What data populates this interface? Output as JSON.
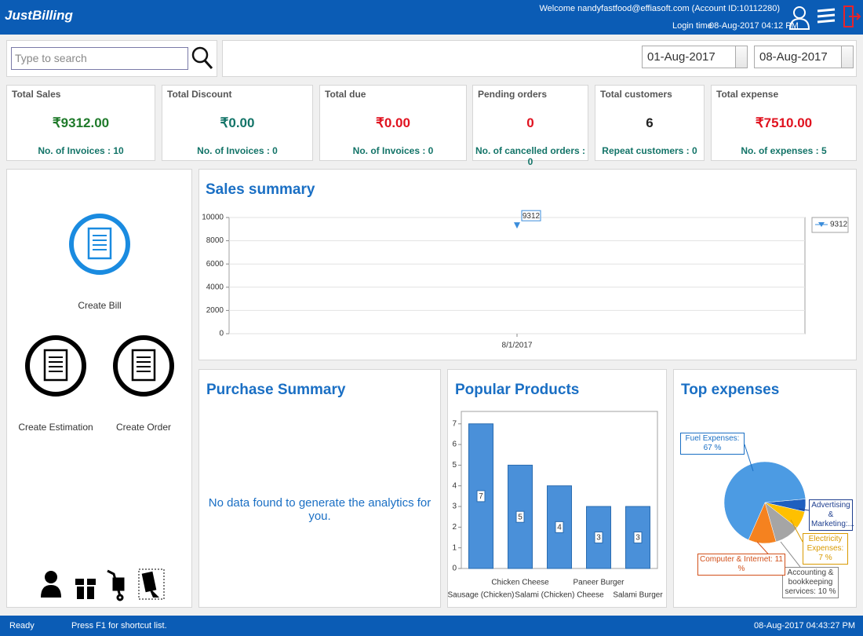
{
  "header": {
    "logo": "JustBilling",
    "welcome": "Welcome nandyfastfood@effiasoft.com (Account ID:10112280)",
    "login_label": "Login time",
    "login_time": "08-Aug-2017 04:12 PM"
  },
  "search": {
    "placeholder": "Type to search"
  },
  "date_range": {
    "from": "01-Aug-2017",
    "to": "08-Aug-2017"
  },
  "cards": [
    {
      "title": "Total Sales",
      "value": "₹9312.00",
      "footer": "No. of Invoices : 10"
    },
    {
      "title": "Total Discount",
      "value": "₹0.00",
      "footer": "No. of Invoices : 0"
    },
    {
      "title": "Total due",
      "value": "₹0.00",
      "footer": "No. of Invoices : 0"
    },
    {
      "title": "Pending orders",
      "value": "0",
      "footer": "No. of cancelled orders : 0"
    },
    {
      "title": "Total customers",
      "value": "6",
      "footer": "Repeat customers :  0"
    },
    {
      "title": "Total expense",
      "value": "₹7510.00",
      "footer": "No. of expenses : 5"
    }
  ],
  "actions": [
    "Create Bill",
    "Create Estimation",
    "Create Order"
  ],
  "purchase_summary": {
    "title": "Purchase Summary",
    "message": "No data found to generate the analytics for you."
  },
  "chart_data": [
    {
      "type": "line",
      "title": "Sales summary",
      "categories": [
        "8/1/2017"
      ],
      "series": [
        {
          "name": "9312",
          "color": "#3b8ddb",
          "values": [
            9312
          ]
        }
      ],
      "ylim": [
        0,
        10000
      ],
      "yticks": [
        0,
        2000,
        4000,
        6000,
        8000,
        10000
      ],
      "grid": true
    },
    {
      "type": "bar",
      "title": "Popular Products",
      "categories": [
        "Sausage (Chicken)",
        "Chicken Cheese",
        "Salami (Chicken) Cheese",
        "Paneer Burger",
        "Salami Burger"
      ],
      "values": [
        7,
        5,
        4,
        3,
        3
      ],
      "color": "#4a90d9",
      "ylim": [
        0,
        7.6
      ],
      "yticks": [
        0,
        1,
        2,
        3,
        4,
        5,
        6,
        7
      ],
      "grid": false
    },
    {
      "type": "pie",
      "title": "Top expenses",
      "values": [
        67,
        5,
        7,
        10,
        11
      ],
      "value_labels": [
        "Fuel Expenses: 67 %",
        "Advertising & Marketing:...",
        "Electricity Expenses: 7 %",
        "Accounting & bookkeeping services: 10 %",
        "Computer & Internet: 11 %"
      ],
      "colors": [
        "#4c9be3",
        "#1f5fbf",
        "#ffc000",
        "#a5a5a5",
        "#f5821f"
      ]
    }
  ],
  "status": {
    "left": "Ready",
    "hint": "Press F1 for shortcut list.",
    "datetime": "08-Aug-2017 04:43:27 PM"
  }
}
